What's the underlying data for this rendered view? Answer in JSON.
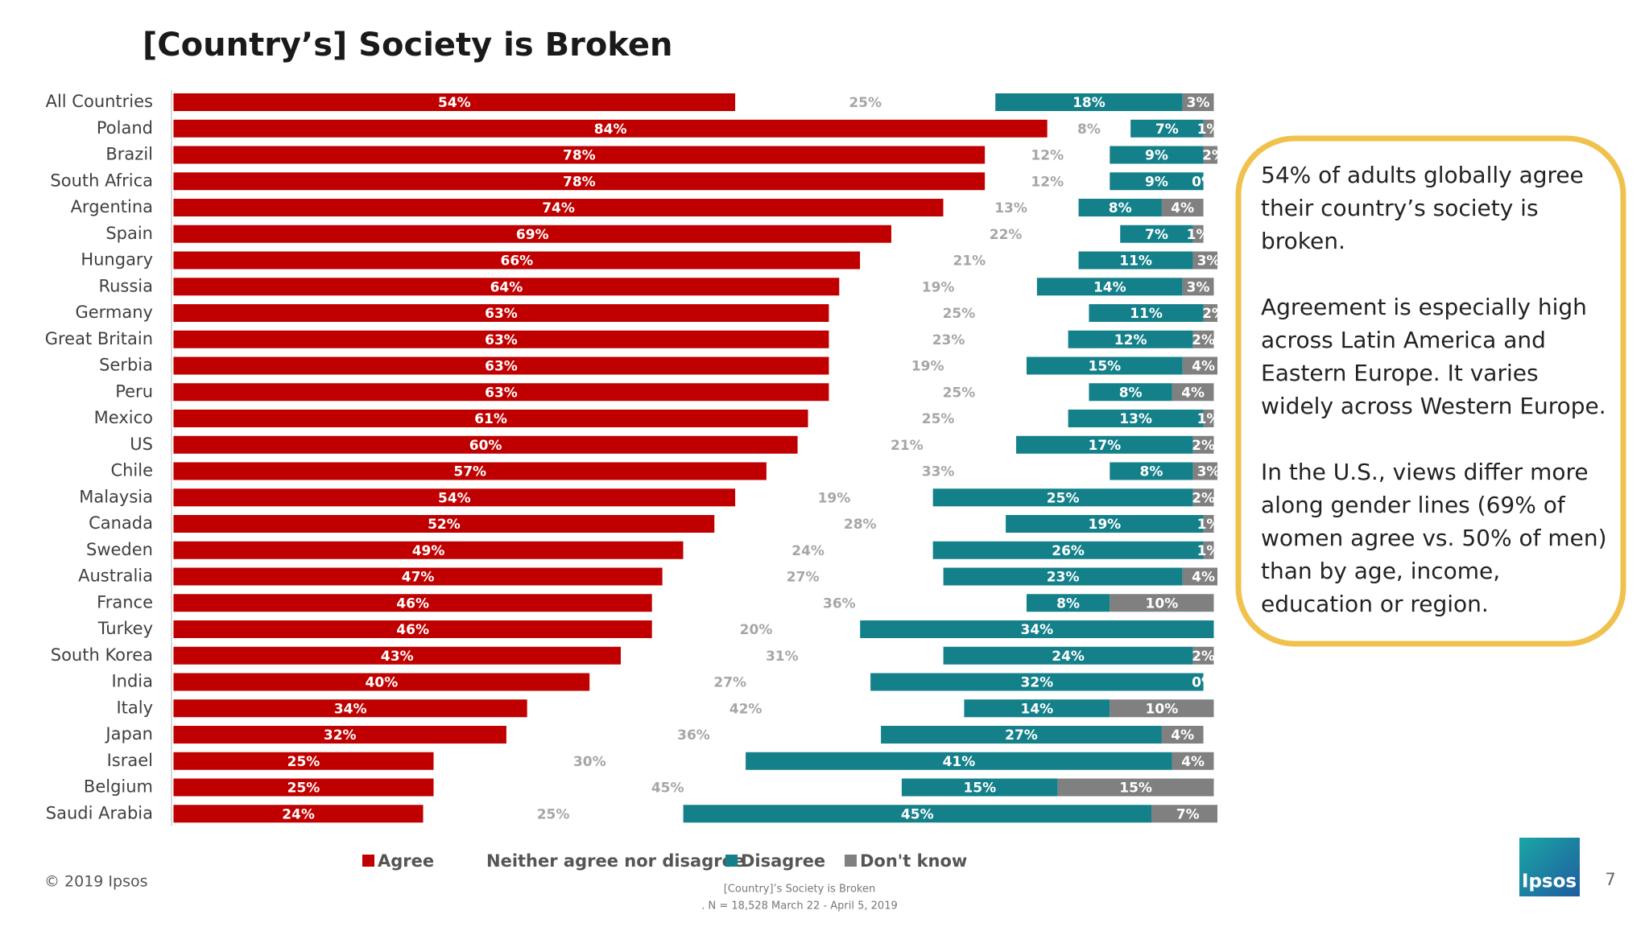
{
  "chart_data": {
    "type": "stacked-barh",
    "title": "[Country’s] Society is Broken",
    "categories": [
      "All Countries",
      "Poland",
      "Brazil",
      "South Africa",
      "Argentina",
      "Spain",
      "Hungary",
      "Russia",
      "Germany",
      "Great Britain",
      "Serbia",
      "Peru",
      "Mexico",
      "US",
      "Chile",
      "Malaysia",
      "Canada",
      "Sweden",
      "Australia",
      "France",
      "Turkey",
      "South Korea",
      "India",
      "Italy",
      "Japan",
      "Israel",
      "Belgium",
      "Saudi Arabia"
    ],
    "series": [
      {
        "name": "Agree",
        "color": "#c00000",
        "label_color": "#ffffff",
        "values": [
          54,
          84,
          78,
          78,
          74,
          69,
          66,
          64,
          63,
          63,
          63,
          63,
          61,
          60,
          57,
          54,
          52,
          49,
          47,
          46,
          46,
          43,
          40,
          34,
          32,
          25,
          25,
          24
        ],
        "value_labels": [
          "54%",
          "84%",
          "78%",
          "78%",
          "74%",
          "69%",
          "66%",
          "64%",
          "63%",
          "63%",
          "63%",
          "63%",
          "61%",
          "60%",
          "57%",
          "54%",
          "52%",
          "49%",
          "47%",
          "46%",
          "46%",
          "43%",
          "40%",
          "34%",
          "32%",
          "25%",
          "25%",
          "24%"
        ]
      },
      {
        "name": "Neither agree nor disagree",
        "color": "#ffffff",
        "label_color": "#a6a6a6",
        "values": [
          25,
          8,
          12,
          12,
          13,
          22,
          21,
          19,
          25,
          23,
          19,
          25,
          25,
          21,
          33,
          19,
          28,
          24,
          27,
          36,
          20,
          31,
          27,
          42,
          36,
          30,
          45,
          25
        ],
        "value_labels": [
          "25%",
          "8%",
          "12%",
          "12%",
          "13%",
          "22%",
          "21%",
          "19%",
          "25%",
          "23%",
          "19%",
          "25%",
          "25%",
          "21%",
          "33%",
          "19%",
          "28%",
          "24%",
          "27%",
          "36%",
          "20%",
          "31%",
          "27%",
          "42%",
          "36%",
          "30%",
          "45%",
          "25%"
        ]
      },
      {
        "name": "Disagree",
        "color": "#14808a",
        "label_color": "#ffffff",
        "values": [
          18,
          7,
          9,
          9,
          8,
          7,
          11,
          14,
          11,
          12,
          15,
          8,
          13,
          17,
          8,
          25,
          19,
          26,
          23,
          8,
          34,
          24,
          32,
          14,
          27,
          41,
          15,
          45
        ],
        "value_labels": [
          "18%",
          "7%",
          "9%",
          "9%",
          "8%",
          "7%",
          "11%",
          "14%",
          "11%",
          "12%",
          "15%",
          "8%",
          "13%",
          "17%",
          "8%",
          "25%",
          "19%",
          "26%",
          "23%",
          "8%",
          "34%",
          "24%",
          "32%",
          "14%",
          "27%",
          "41%",
          "15%",
          "45%"
        ]
      },
      {
        "name": "Don't know",
        "color": "#808080",
        "label_color": "#ffffff",
        "values": [
          3,
          1,
          2,
          0,
          4,
          1,
          3,
          3,
          2,
          2,
          4,
          4,
          1,
          2,
          3,
          2,
          1,
          1,
          4,
          10,
          0,
          2,
          0,
          10,
          4,
          4,
          15,
          7
        ],
        "value_labels": [
          "3%",
          "1%",
          "2%",
          "0%",
          "4%",
          "1%",
          "3%",
          "3%",
          "2%",
          "2%",
          "4%",
          "4%",
          "1%",
          "2%",
          "3%",
          "2%",
          "1%",
          "1%",
          "4%",
          "10%",
          null,
          "2%",
          "0%",
          "10%",
          "4%",
          "4%",
          "15%",
          "7%"
        ]
      }
    ]
  },
  "annotation": [
    [
      "54% of adults globally agree",
      "their country’s society is",
      "broken."
    ],
    [
      "Agreement is especially high",
      "across Latin America and",
      "Eastern Europe. It varies",
      "widely across Western Europe."
    ],
    [
      "In the U.S., views differ more",
      "along gender lines (69% of",
      "women agree vs. 50% of men)",
      "than by age, income,",
      "education or region."
    ]
  ],
  "footer": {
    "copyright": "© 2019 Ipsos",
    "source": [
      "[Country]’s Society is Broken",
      ". N = 18,528  March 22 - April 5, 2019"
    ],
    "logo": "Ipsos",
    "page": "7"
  }
}
